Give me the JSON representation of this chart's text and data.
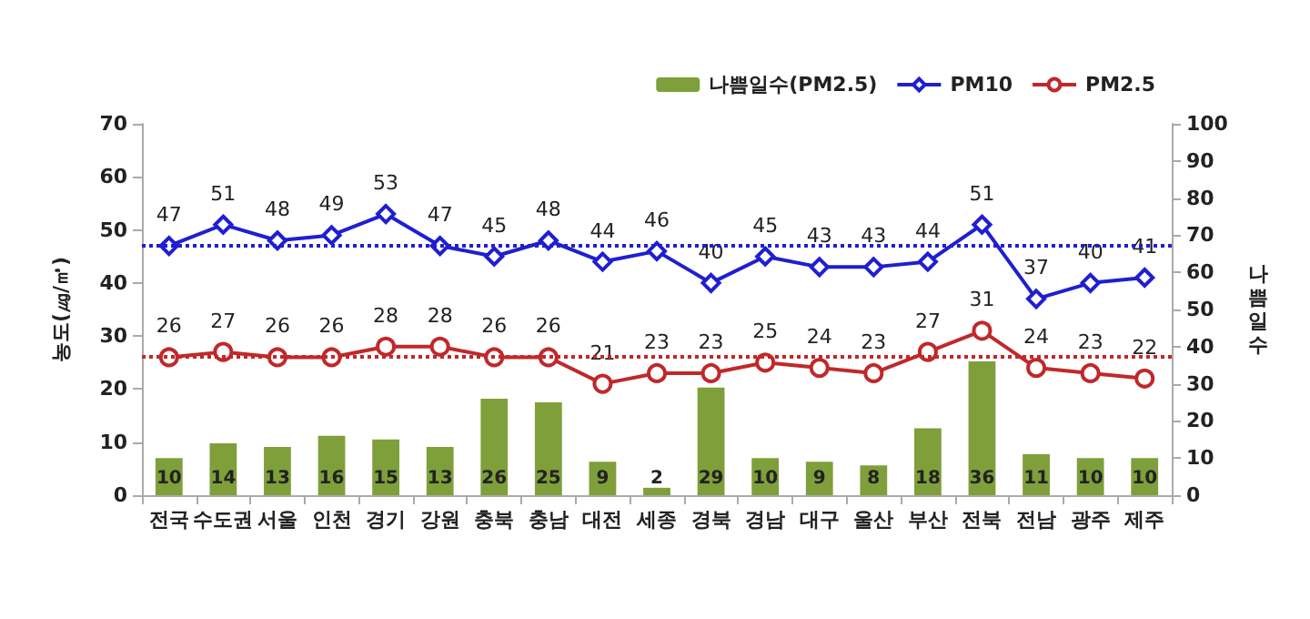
{
  "chart_data": {
    "type": "bar",
    "categories": [
      "전국",
      "수도권",
      "서울",
      "인천",
      "경기",
      "강원",
      "충북",
      "충남",
      "대전",
      "세종",
      "경북",
      "경남",
      "대구",
      "울산",
      "부산",
      "전북",
      "전남",
      "광주",
      "제주"
    ],
    "series": [
      {
        "name": "나쁨일수(PM2.5)",
        "axis": "y2",
        "color": "#7f9f3a",
        "values": [
          10,
          14,
          13,
          16,
          15,
          13,
          26,
          25,
          9,
          2,
          29,
          10,
          9,
          8,
          18,
          36,
          11,
          10,
          10
        ]
      },
      {
        "name": "PM10",
        "type": "line",
        "marker": "diamond",
        "color": "#1f1fd0",
        "values": [
          47,
          51,
          48,
          49,
          53,
          47,
          45,
          48,
          44,
          46,
          40,
          45,
          43,
          43,
          44,
          51,
          37,
          40,
          41
        ]
      },
      {
        "name": "PM2.5",
        "type": "line",
        "marker": "circle",
        "color": "#c0282a",
        "values": [
          26,
          27,
          26,
          26,
          28,
          28,
          26,
          26,
          21,
          23,
          23,
          25,
          24,
          23,
          27,
          31,
          24,
          23,
          22
        ]
      }
    ],
    "ylabel": "농도(㎍/㎥)",
    "y2label": "나쁨일수",
    "ylim": [
      0,
      70
    ],
    "yticks": [
      0,
      10,
      20,
      30,
      40,
      50,
      60,
      70
    ],
    "y2lim": [
      0,
      100
    ],
    "y2ticks": [
      0,
      10,
      20,
      30,
      40,
      50,
      60,
      70,
      80,
      90,
      100
    ],
    "ref_lines": [
      {
        "axis": "y",
        "value": 47,
        "color": "#1f1fd0",
        "line_style": "dotted"
      },
      {
        "axis": "y",
        "value": 26,
        "color": "#c0282a",
        "line_style": "dotted"
      }
    ],
    "data_labels": true,
    "grid": false,
    "legend": "top right"
  }
}
